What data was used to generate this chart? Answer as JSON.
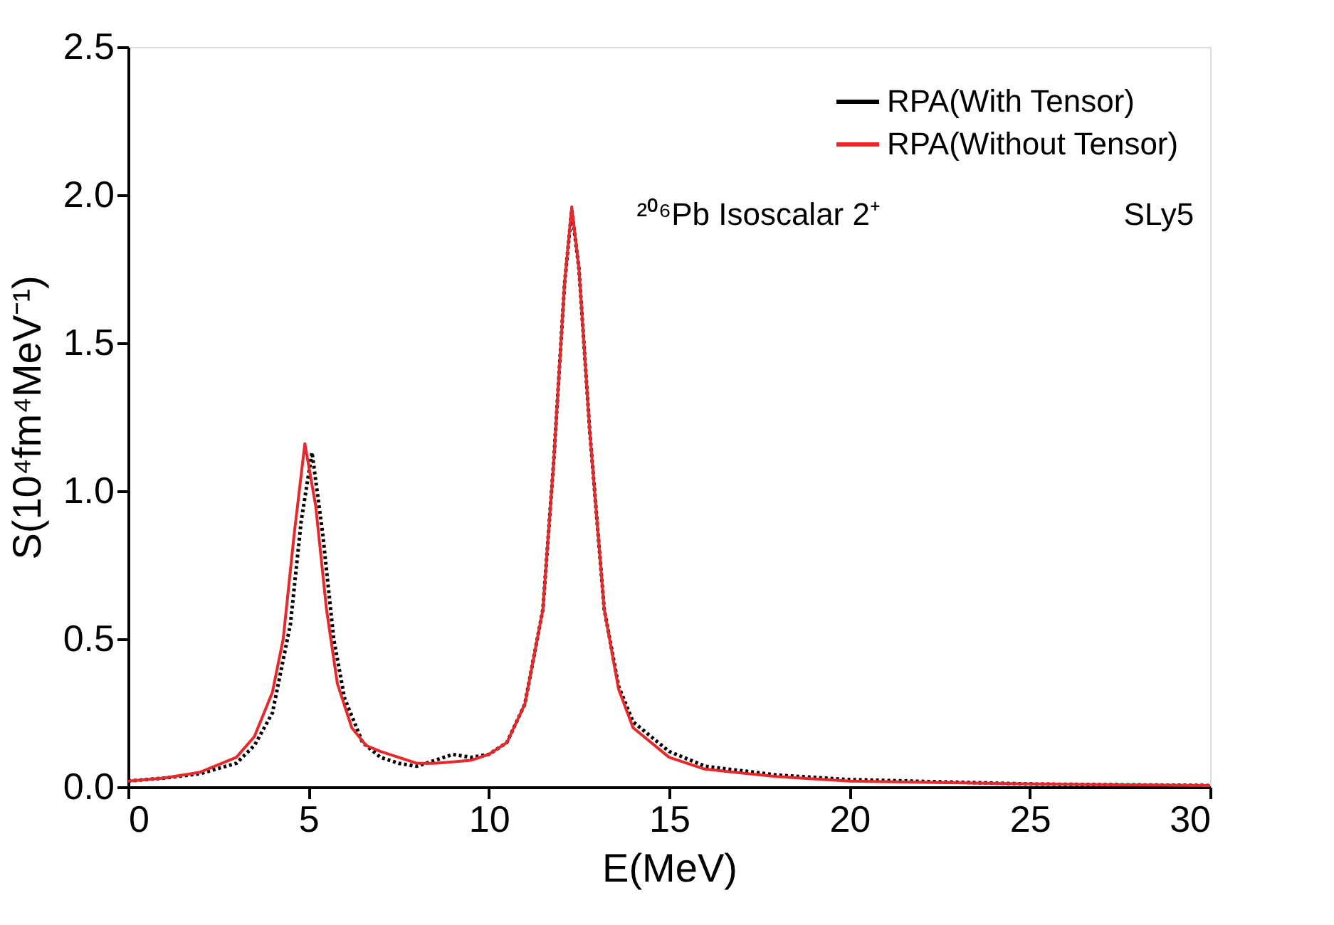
{
  "chart_data": {
    "type": "line",
    "xlabel": "E(MeV)",
    "ylabel": "S(10⁴fm⁴MeV⁻¹)",
    "xlim": [
      0,
      30
    ],
    "xticks": [
      0,
      5,
      10,
      15,
      20,
      25,
      30
    ],
    "ylim": [
      0,
      2.5
    ],
    "yticks": [
      {
        "value": 0,
        "label": "0.0"
      },
      {
        "value": 0.5,
        "label": "0.5"
      },
      {
        "value": 1,
        "label": "1.0"
      },
      {
        "value": 1.5,
        "label": "1.5"
      },
      {
        "value": 2,
        "label": "2.0"
      },
      {
        "value": 2.5,
        "label": "2.5"
      }
    ],
    "grid": false,
    "legend": "top right",
    "marker": "none",
    "annotations": [
      "²⁰⁶Pb  Isoscalar 2⁺",
      "SLy5"
    ],
    "series": [
      {
        "name": "RPA(With Tensor)",
        "color": "#000000",
        "line_style": "dotted",
        "x": [
          0,
          1,
          2,
          3,
          3.5,
          4,
          4.5,
          4.8,
          5.1,
          5.4,
          5.7,
          6,
          6.5,
          7,
          7.5,
          8,
          8.5,
          9,
          9.5,
          10,
          10.5,
          11,
          11.5,
          11.8,
          12.1,
          12.3,
          12.5,
          12.8,
          13.2,
          13.6,
          14,
          15,
          16,
          18,
          20,
          25,
          30
        ],
        "values": [
          0.02,
          0.03,
          0.045,
          0.08,
          0.14,
          0.25,
          0.55,
          0.9,
          1.13,
          0.85,
          0.5,
          0.3,
          0.15,
          0.1,
          0.08,
          0.07,
          0.09,
          0.11,
          0.1,
          0.11,
          0.15,
          0.28,
          0.6,
          1.1,
          1.7,
          1.95,
          1.75,
          1.2,
          0.6,
          0.34,
          0.22,
          0.12,
          0.07,
          0.04,
          0.025,
          0.01,
          0.005
        ]
      },
      {
        "name": "RPA(Without Tensor)",
        "color": "#e8282b",
        "line_style": "solid",
        "x": [
          0,
          1,
          2,
          3,
          3.5,
          4,
          4.3,
          4.6,
          4.9,
          5.2,
          5.5,
          5.8,
          6.2,
          6.6,
          7,
          7.5,
          8,
          8.5,
          9,
          9.5,
          10,
          10.5,
          11,
          11.5,
          11.8,
          12.1,
          12.3,
          12.5,
          12.8,
          13.2,
          13.6,
          14,
          15,
          16,
          18,
          20,
          25,
          30
        ],
        "values": [
          0.02,
          0.03,
          0.05,
          0.1,
          0.17,
          0.32,
          0.5,
          0.85,
          1.16,
          0.95,
          0.6,
          0.35,
          0.2,
          0.14,
          0.12,
          0.1,
          0.08,
          0.08,
          0.085,
          0.09,
          0.11,
          0.15,
          0.28,
          0.6,
          1.1,
          1.7,
          1.96,
          1.75,
          1.2,
          0.6,
          0.33,
          0.2,
          0.1,
          0.06,
          0.035,
          0.02,
          0.01,
          0.005
        ]
      }
    ]
  }
}
